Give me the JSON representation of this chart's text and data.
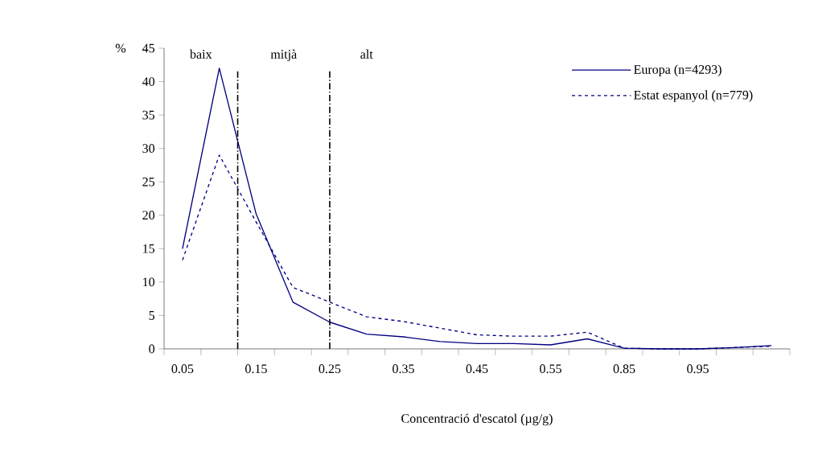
{
  "chart_data": {
    "type": "line",
    "ylabel": "%",
    "xlabel": "Concentració d'escatol (µg/g)",
    "categories": [
      "0.05",
      null,
      "0.15",
      null,
      "0.25",
      null,
      "0.35",
      null,
      "0.45",
      null,
      "0.55",
      null,
      "0.85",
      null,
      "0.95",
      null,
      null
    ],
    "series": [
      {
        "name": "Europa (n=4293)",
        "color": "#000080",
        "line_style": "solid",
        "values": [
          15,
          42,
          20.2,
          7,
          4,
          2.2,
          1.8,
          1.1,
          0.8,
          0.8,
          0.6,
          1.5,
          0.1,
          0,
          0,
          0.2,
          0.5
        ]
      },
      {
        "name": "Estat espanyol (n=779)",
        "color": "#000080",
        "line_style": "dashed",
        "values": [
          13.3,
          29,
          19,
          9.2,
          7,
          4.8,
          4.1,
          3.1,
          2.1,
          1.9,
          1.9,
          2.5,
          0.1,
          0,
          0,
          0.2,
          0.4
        ]
      }
    ],
    "ylim": [
      0,
      45
    ],
    "yticks": [
      0,
      5,
      10,
      15,
      20,
      25,
      30,
      35,
      40,
      45
    ],
    "ref_lines": [
      {
        "axis": "x",
        "value": "0.25",
        "color": "#000000",
        "line_style": "dashdot"
      }
    ],
    "annotations": [
      "baix",
      "mitjà",
      "alt"
    ],
    "legend": "top right",
    "marker": "none"
  }
}
